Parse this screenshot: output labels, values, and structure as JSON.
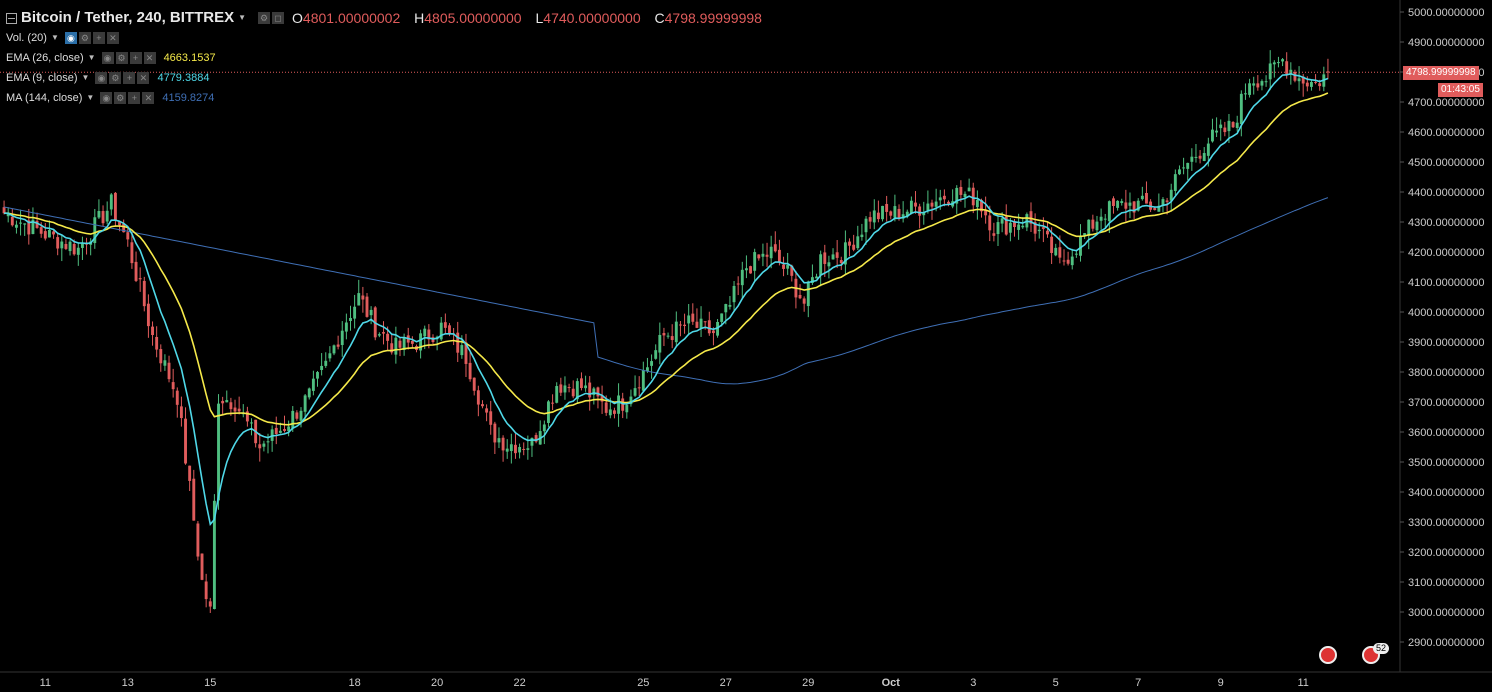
{
  "header": {
    "title": "Bitcoin / Tether, 240, BITTREX",
    "ohlc": [
      {
        "key": "O",
        "value": "4801.00000002"
      },
      {
        "key": "H",
        "value": "4805.00000000"
      },
      {
        "key": "L",
        "value": "4740.00000000"
      },
      {
        "key": "C",
        "value": "4798.99999998"
      }
    ]
  },
  "indicators": [
    {
      "label": "Vol. (20)",
      "value": "",
      "color": "#dddddd"
    },
    {
      "label": "EMA (26, close)",
      "value": "4663.1537",
      "color": "#f5e94a"
    },
    {
      "label": "EMA (9, close)",
      "value": "4779.3884",
      "color": "#4fd8e8"
    },
    {
      "label": "MA (144, close)",
      "value": "4159.8274",
      "color": "#3f6fb5"
    }
  ],
  "price_label": {
    "value": "4798.99999998",
    "countdown": "01:43:05",
    "color": "#e05c5c"
  },
  "badge_count": "52",
  "colors": {
    "up": "#4fbf80",
    "down": "#e05c5c",
    "background": "#000000",
    "ema26": "#f5e94a",
    "ema9": "#4fd8e8",
    "ma144": "#3f6fb5"
  },
  "chart_data": {
    "type": "candlestick",
    "y_axis": {
      "min": 2850,
      "max": 5030,
      "tick_labels": [
        "5000.00000000",
        "4900.00000000",
        "4800.00000000",
        "4700.00000000",
        "4600.00000000",
        "4500.00000000",
        "4400.00000000",
        "4300.00000000",
        "4200.00000000",
        "4100.00000000",
        "4000.00000000",
        "3900.00000000",
        "3800.00000000",
        "3700.00000000",
        "3600.00000000",
        "3500.00000000",
        "3400.00000000",
        "3300.00000000",
        "3200.00000000",
        "3100.00000000",
        "3000.00000000",
        "2900.00000000"
      ],
      "ticks": [
        5000,
        4900,
        4800,
        4700,
        4600,
        4500,
        4400,
        4300,
        4200,
        4100,
        4000,
        3900,
        3800,
        3700,
        3600,
        3500,
        3400,
        3300,
        3200,
        3100,
        3000,
        2900
      ]
    },
    "x_axis": {
      "labels": [
        "11",
        "13",
        "15",
        "18",
        "20",
        "22",
        "25",
        "27",
        "29",
        "Oct",
        "3",
        "5",
        "7",
        "9",
        "11"
      ],
      "label_bar_index": [
        10,
        30,
        50,
        85,
        105,
        125,
        155,
        175,
        195,
        215,
        235,
        255,
        275,
        295,
        315
      ]
    },
    "bar_count": 322,
    "key_closes": [
      [
        0,
        4330
      ],
      [
        10,
        4260
      ],
      [
        18,
        4210
      ],
      [
        26,
        4360
      ],
      [
        30,
        4230
      ],
      [
        36,
        3920
      ],
      [
        42,
        3720
      ],
      [
        48,
        3100
      ],
      [
        50,
        3000
      ],
      [
        52,
        3720
      ],
      [
        56,
        3700
      ],
      [
        62,
        3550
      ],
      [
        68,
        3620
      ],
      [
        74,
        3720
      ],
      [
        78,
        3820
      ],
      [
        82,
        3950
      ],
      [
        86,
        4050
      ],
      [
        90,
        3950
      ],
      [
        95,
        3880
      ],
      [
        100,
        3900
      ],
      [
        106,
        3950
      ],
      [
        112,
        3850
      ],
      [
        118,
        3600
      ],
      [
        122,
        3560
      ],
      [
        128,
        3560
      ],
      [
        134,
        3760
      ],
      [
        140,
        3750
      ],
      [
        146,
        3680
      ],
      [
        150,
        3700
      ],
      [
        156,
        3820
      ],
      [
        160,
        3920
      ],
      [
        166,
        3960
      ],
      [
        172,
        3930
      ],
      [
        176,
        4020
      ],
      [
        180,
        4150
      ],
      [
        186,
        4200
      ],
      [
        190,
        4130
      ],
      [
        194,
        4030
      ],
      [
        198,
        4180
      ],
      [
        204,
        4200
      ],
      [
        210,
        4320
      ],
      [
        216,
        4330
      ],
      [
        222,
        4350
      ],
      [
        230,
        4400
      ],
      [
        236,
        4380
      ],
      [
        240,
        4280
      ],
      [
        248,
        4310
      ],
      [
        252,
        4250
      ],
      [
        256,
        4160
      ],
      [
        260,
        4220
      ],
      [
        266,
        4330
      ],
      [
        272,
        4360
      ],
      [
        280,
        4350
      ],
      [
        286,
        4480
      ],
      [
        292,
        4570
      ],
      [
        298,
        4620
      ],
      [
        302,
        4780
      ],
      [
        306,
        4780
      ],
      [
        310,
        4840
      ],
      [
        314,
        4780
      ],
      [
        318,
        4760
      ],
      [
        321,
        4799
      ]
    ],
    "series": [
      {
        "name": "EMA (26, close)",
        "period": 26,
        "type": "ema",
        "last": 4663.1537
      },
      {
        "name": "EMA (9, close)",
        "period": 9,
        "type": "ema",
        "last": 4779.3884
      },
      {
        "name": "MA (144, close)",
        "period": 144,
        "type": "sma",
        "last": 4159.8274
      }
    ],
    "last_close": 4798.99999998
  }
}
